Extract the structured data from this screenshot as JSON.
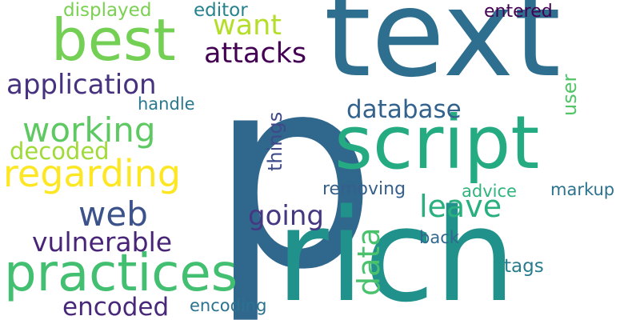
{
  "words": [
    {
      "id": "p",
      "text": "p",
      "color": "#30678d",
      "vertical": false
    },
    {
      "id": "text",
      "text": "text",
      "color": "#2e6e8e",
      "vertical": false
    },
    {
      "id": "rich",
      "text": "rich",
      "color": "#21918c",
      "vertical": false
    },
    {
      "id": "script",
      "text": "script",
      "color": "#25ab82",
      "vertical": false
    },
    {
      "id": "best",
      "text": "best",
      "color": "#74d055",
      "vertical": false
    },
    {
      "id": "practices",
      "text": "practices",
      "color": "#43bf71",
      "vertical": false
    },
    {
      "id": "regarding",
      "text": "regarding",
      "color": "#fde725",
      "vertical": false
    },
    {
      "id": "working",
      "text": "working",
      "color": "#5ec962",
      "vertical": false
    },
    {
      "id": "application",
      "text": "application",
      "color": "#46327e",
      "vertical": false
    },
    {
      "id": "web",
      "text": "web",
      "color": "#3b528b",
      "vertical": false
    },
    {
      "id": "vulnerable",
      "text": "vulnerable",
      "color": "#482576",
      "vertical": false
    },
    {
      "id": "encoded",
      "text": "encoded",
      "color": "#482878",
      "vertical": false
    },
    {
      "id": "decoded",
      "text": "decoded",
      "color": "#a0da39",
      "vertical": false
    },
    {
      "id": "want",
      "text": "want",
      "color": "#b5de2b",
      "vertical": false
    },
    {
      "id": "attacks",
      "text": "attacks",
      "color": "#440154",
      "vertical": false
    },
    {
      "id": "displayed",
      "text": "displayed",
      "color": "#7ad151",
      "vertical": false
    },
    {
      "id": "editor",
      "text": "editor",
      "color": "#26828e",
      "vertical": false
    },
    {
      "id": "entered",
      "text": "entered",
      "color": "#440154",
      "vertical": false
    },
    {
      "id": "database",
      "text": "database",
      "color": "#33638d",
      "vertical": false
    },
    {
      "id": "handle",
      "text": "handle",
      "color": "#2a788e",
      "vertical": false
    },
    {
      "id": "leave",
      "text": "leave",
      "color": "#2ab07f",
      "vertical": false
    },
    {
      "id": "going",
      "text": "going",
      "color": "#453781",
      "vertical": false
    },
    {
      "id": "data",
      "text": "data",
      "color": "#4ac16d",
      "vertical": true
    },
    {
      "id": "things",
      "text": "things",
      "color": "#3e4a89",
      "vertical": true
    },
    {
      "id": "user",
      "text": "user",
      "color": "#52c569",
      "vertical": true
    },
    {
      "id": "removing",
      "text": "removing",
      "color": "#355f8d",
      "vertical": false
    },
    {
      "id": "advice",
      "text": "advice",
      "color": "#2fb47c",
      "vertical": false
    },
    {
      "id": "markup",
      "text": "markup",
      "color": "#2c728e",
      "vertical": false
    },
    {
      "id": "back",
      "text": "back",
      "color": "#31688e",
      "vertical": false
    },
    {
      "id": "tags",
      "text": "tags",
      "color": "#287c8e",
      "vertical": false
    },
    {
      "id": "encoding",
      "text": "encoding",
      "color": "#2c728e",
      "vertical": false
    }
  ]
}
